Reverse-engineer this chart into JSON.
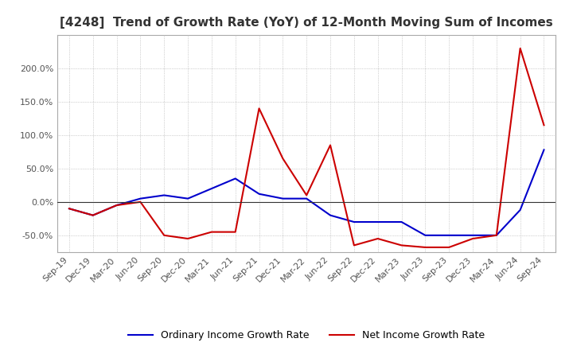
{
  "title": "[4248]  Trend of Growth Rate (YoY) of 12-Month Moving Sum of Incomes",
  "title_fontsize": 11,
  "legend_labels": [
    "Ordinary Income Growth Rate",
    "Net Income Growth Rate"
  ],
  "legend_colors": [
    "#0000cc",
    "#cc0000"
  ],
  "x_labels": [
    "Sep-19",
    "Dec-19",
    "Mar-20",
    "Jun-20",
    "Sep-20",
    "Dec-20",
    "Mar-21",
    "Jun-21",
    "Sep-21",
    "Dec-21",
    "Mar-22",
    "Jun-22",
    "Sep-22",
    "Dec-22",
    "Mar-23",
    "Jun-23",
    "Sep-23",
    "Dec-23",
    "Mar-24",
    "Jun-24",
    "Sep-24"
  ],
  "ordinary": [
    -10,
    -20,
    -5,
    5,
    10,
    5,
    20,
    35,
    12,
    5,
    5,
    -20,
    -30,
    -30,
    -30,
    -50,
    -50,
    -50,
    -50,
    -12,
    78
  ],
  "net": [
    -10,
    -20,
    -5,
    0,
    -50,
    -55,
    -45,
    -45,
    140,
    65,
    10,
    85,
    -65,
    -55,
    -65,
    -68,
    -68,
    -55,
    -50,
    230,
    115
  ]
}
